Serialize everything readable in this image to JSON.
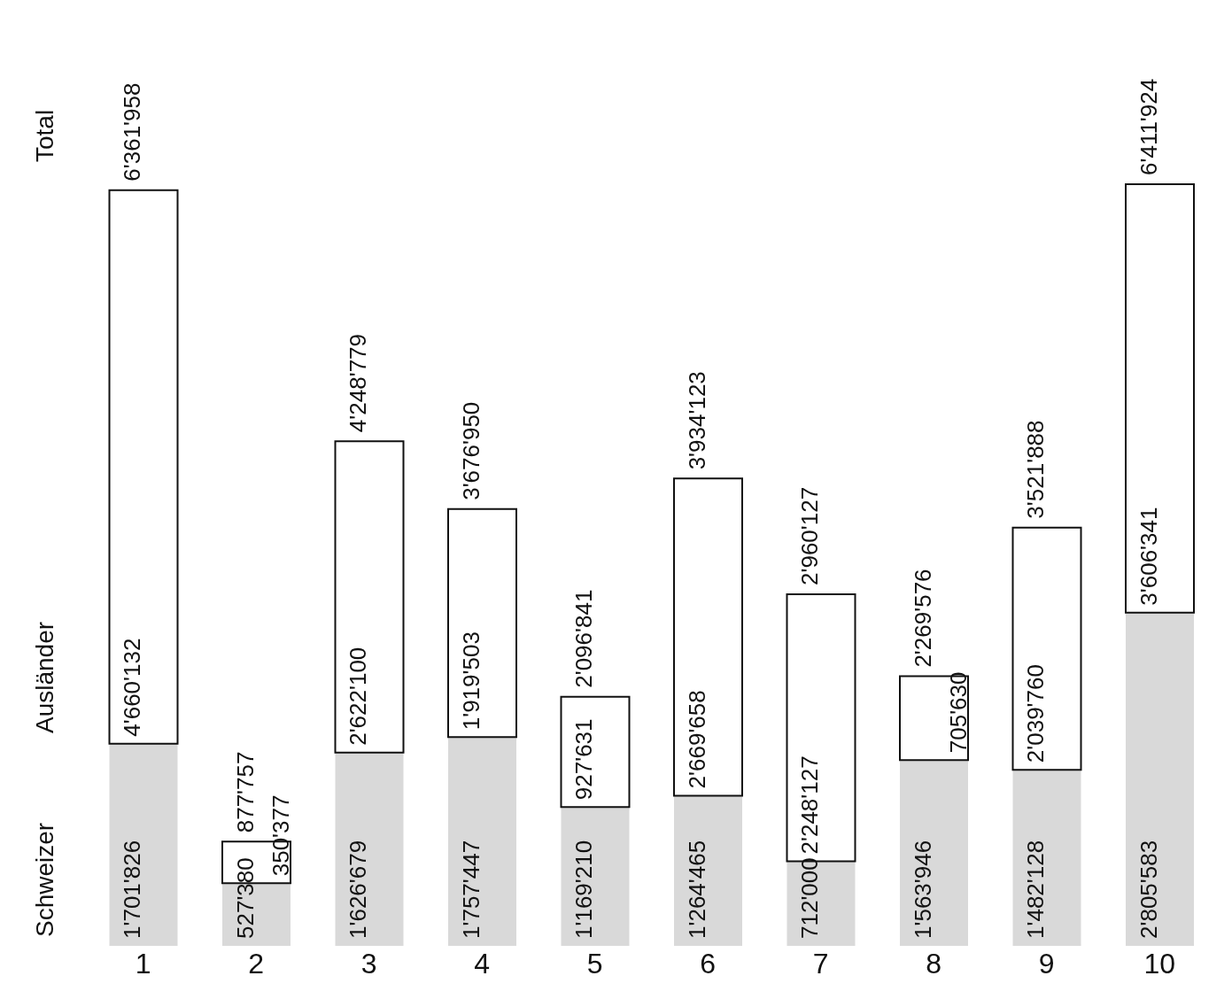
{
  "chart_data": {
    "type": "bar",
    "stacked": true,
    "categories": [
      "1",
      "2",
      "3",
      "4",
      "5",
      "6",
      "7",
      "8",
      "9",
      "10"
    ],
    "series": [
      {
        "name": "Schweizer",
        "color": "#d9d9d9",
        "values": [
          1701826,
          527380,
          1626679,
          1757447,
          1169210,
          1264465,
          712000,
          1563946,
          1482128,
          2805583
        ],
        "value_labels": [
          "1'701'826",
          "527'380",
          "1'626'679",
          "1'757'447",
          "1'169'210",
          "1'264'465",
          "712'000",
          "1'563'946",
          "1'482'128",
          "2'805'583"
        ]
      },
      {
        "name": "Ausländer",
        "color": "#ffffff",
        "values": [
          4660132,
          350377,
          2622100,
          1919503,
          927631,
          2669658,
          2248127,
          705630,
          2039760,
          3606341
        ],
        "value_labels": [
          "4'660'132",
          "350'377",
          "2'622'100",
          "1'919'503",
          "927'631",
          "2'669'658",
          "2'248'127",
          "705'630",
          "2'039'760",
          "3'606'341"
        ]
      }
    ],
    "totals": [
      "6'361'958",
      "877'757",
      "4'248'779",
      "3'676'950",
      "2'096'841",
      "3'934'123",
      "2'960'127",
      "2'269'576",
      "3'521'888",
      "6'411'924"
    ],
    "annotations": [
      "Total"
    ]
  }
}
